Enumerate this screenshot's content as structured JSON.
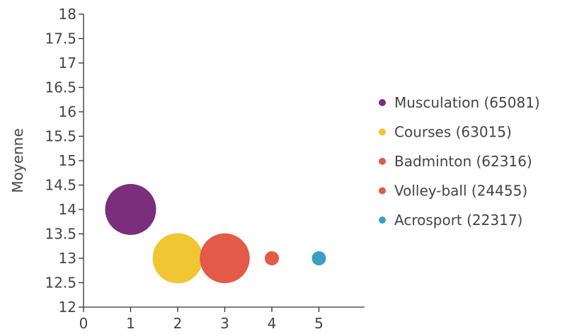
{
  "chart_data": {
    "type": "scatter",
    "title": "",
    "xlabel": "",
    "ylabel": "Moyenne",
    "xlim": [
      0,
      6
    ],
    "ylim": [
      12,
      18
    ],
    "x_ticks": [
      "0",
      "1",
      "2",
      "3",
      "4",
      "5"
    ],
    "y_ticks": [
      "12",
      "12.5",
      "13",
      "13.5",
      "14",
      "14.5",
      "15",
      "15.5",
      "16",
      "16.5",
      "17",
      "17.5",
      "18"
    ],
    "grid": false,
    "legend_position": "right",
    "series": [
      {
        "name": "Musculation (65081)",
        "x": 1,
        "y": 14,
        "size": 65081,
        "color": "#7b2d7e"
      },
      {
        "name": "Courses (63015)",
        "x": 2,
        "y": 13,
        "size": 63015,
        "color": "#f2c533"
      },
      {
        "name": "Badminton (62316)",
        "x": 3,
        "y": 13,
        "size": 62316,
        "color": "#e35a48"
      },
      {
        "name": "Volley-ball (24455)",
        "x": 4,
        "y": 13,
        "size": 24455,
        "color": "#e35a48"
      },
      {
        "name": "Acrosport (22317)",
        "x": 5,
        "y": 13,
        "size": 22317,
        "color": "#3a9fc0"
      }
    ]
  }
}
